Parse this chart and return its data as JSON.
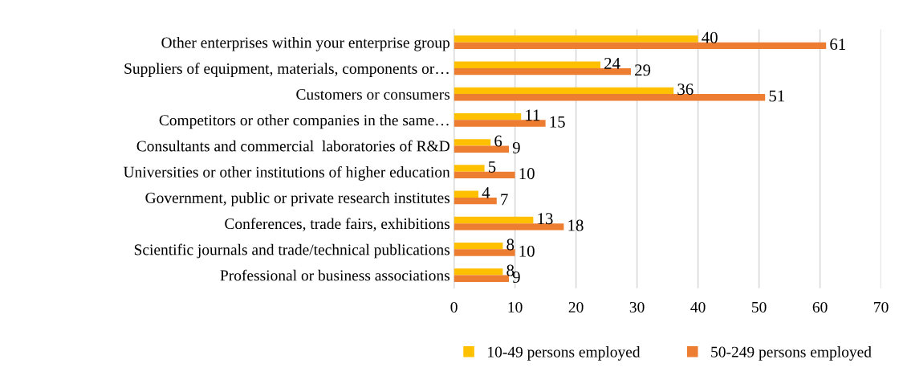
{
  "chart_data": {
    "type": "bar",
    "orientation": "horizontal",
    "categories": [
      "Other enterprises within your enterprise group",
      "Suppliers of equipment, materials, components or…",
      "Customers or consumers",
      "Competitors or other companies in the same…",
      "Consultants and commercial  laboratories of R&D",
      "Universities or other institutions of higher education",
      "Government, public or private research institutes",
      "Conferences, trade fairs, exhibitions",
      "Scientific journals and trade/technical publications",
      "Professional or business associations"
    ],
    "series": [
      {
        "name": "10-49 persons employed",
        "color": "#ffc000",
        "values": [
          40,
          24,
          36,
          11,
          6,
          5,
          4,
          13,
          8,
          8
        ]
      },
      {
        "name": "50-249 persons employed",
        "color": "#ed7d31",
        "values": [
          61,
          29,
          51,
          15,
          9,
          10,
          7,
          18,
          10,
          9
        ]
      }
    ],
    "data_labels": true,
    "xlim": [
      0,
      70
    ],
    "xticks": [
      0,
      10,
      20,
      30,
      40,
      50,
      60,
      70
    ],
    "grid": "x",
    "legend": "bottom"
  }
}
